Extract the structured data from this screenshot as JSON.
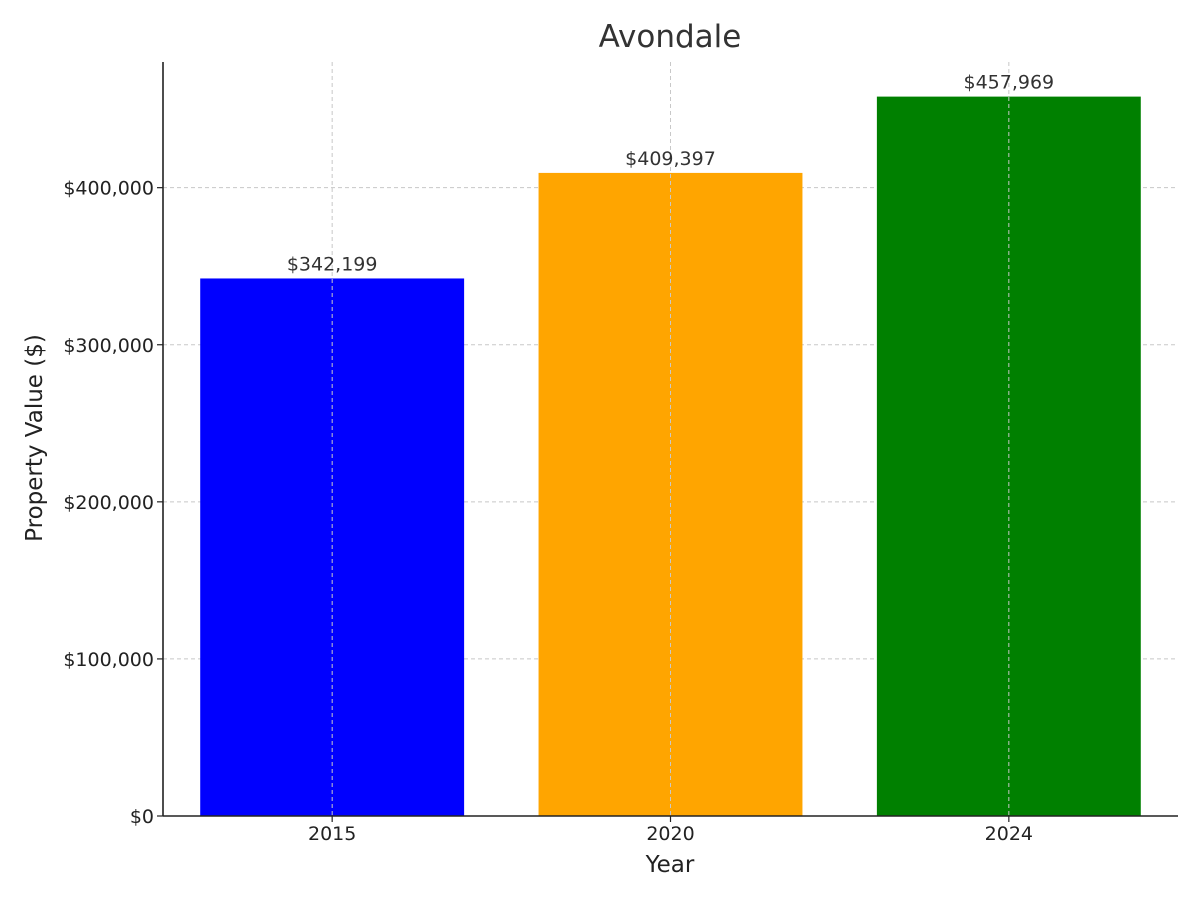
{
  "chart_data": {
    "type": "bar",
    "title": "Avondale",
    "xlabel": "Year",
    "ylabel": "Property Value ($)",
    "categories": [
      "2015",
      "2020",
      "2024"
    ],
    "values": [
      342199,
      409397,
      457969
    ],
    "value_labels": [
      "$342,199",
      "$409,397",
      "$457,969"
    ],
    "colors": [
      "#0000ff",
      "#ffa500",
      "#008000"
    ],
    "ylim": [
      0,
      480000
    ],
    "yticks": [
      0,
      100000,
      200000,
      300000,
      400000
    ],
    "ytick_labels": [
      "$0",
      "$100,000",
      "$200,000",
      "$300,000",
      "$400,000"
    ],
    "grid": true,
    "legend": "none"
  }
}
